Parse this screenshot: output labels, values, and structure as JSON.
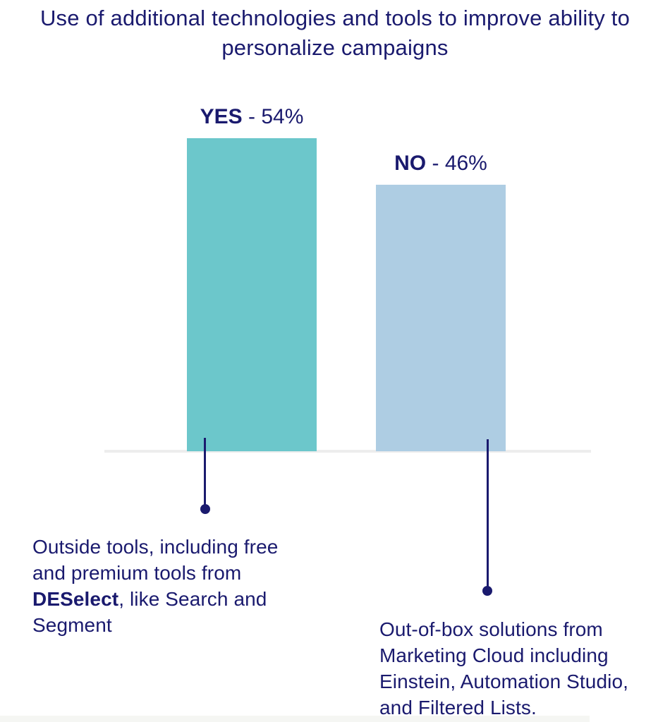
{
  "page": {
    "title": "Use of additional technologies and tools to improve ability to personalize campaigns"
  },
  "chart_data": {
    "type": "bar",
    "title": "Use of additional technologies and tools to improve ability to personalize campaigns",
    "categories": [
      "YES",
      "NO"
    ],
    "values": [
      54,
      46
    ],
    "unit": "%",
    "ylim": [
      0,
      60
    ],
    "grid": false,
    "legend": "none",
    "separator": " - ",
    "bars": [
      {
        "label": "YES",
        "value": 54,
        "value_text": "54%",
        "color": "#6CC7CB"
      },
      {
        "label": "NO",
        "value": 46,
        "value_text": "46%",
        "color": "#AECDE3"
      }
    ],
    "baseline_color": "#EDEDED",
    "text_color": "#1A1A6E"
  },
  "annotations": {
    "yes": {
      "prefix": "Outside tools, including free and premium tools from ",
      "bold": "DESelect",
      "suffix": ", like Search and Segment"
    },
    "no": {
      "prefix": "Out-of-box solutions from Marketing Cloud including Einstein, Automation Studio, and Filtered Lists.",
      "bold": "",
      "suffix": ""
    }
  }
}
